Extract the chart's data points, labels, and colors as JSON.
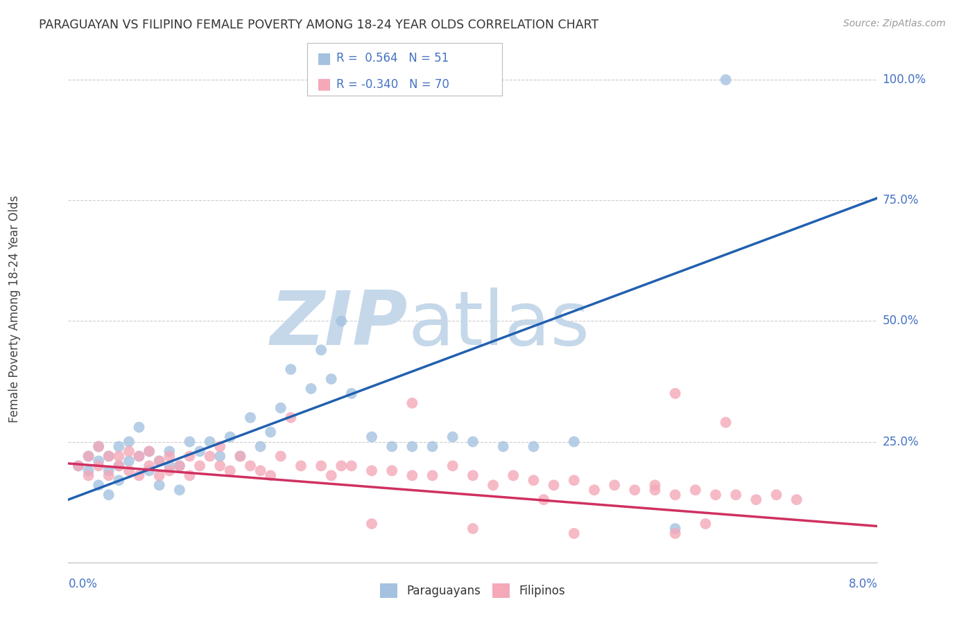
{
  "title": "PARAGUAYAN VS FILIPINO FEMALE POVERTY AMONG 18-24 YEAR OLDS CORRELATION CHART",
  "source": "Source: ZipAtlas.com",
  "ylabel": "Female Poverty Among 18-24 Year Olds",
  "xlim": [
    0.0,
    0.08
  ],
  "ylim": [
    0.0,
    1.05
  ],
  "paraguay_R": 0.564,
  "paraguay_N": 51,
  "filipino_R": -0.34,
  "filipino_N": 70,
  "blue_color": "#a4c2e0",
  "pink_color": "#f4a8b8",
  "blue_line_color": "#2060b0",
  "pink_line_color": "#d03060",
  "label_color": "#4472C4",
  "watermark_zip_color": "#c5d8ea",
  "watermark_atlas_color": "#c5d8ea",
  "background_color": "#ffffff",
  "blue_line_y0": 0.13,
  "blue_line_y1": 0.755,
  "pink_line_y0": 0.205,
  "pink_line_y1": 0.075,
  "para_x": [
    0.001,
    0.002,
    0.002,
    0.003,
    0.003,
    0.003,
    0.004,
    0.004,
    0.004,
    0.005,
    0.005,
    0.005,
    0.006,
    0.006,
    0.007,
    0.007,
    0.008,
    0.008,
    0.009,
    0.009,
    0.01,
    0.01,
    0.011,
    0.011,
    0.012,
    0.013,
    0.014,
    0.015,
    0.016,
    0.017,
    0.018,
    0.019,
    0.02,
    0.021,
    0.022,
    0.024,
    0.025,
    0.026,
    0.027,
    0.028,
    0.03,
    0.032,
    0.034,
    0.036,
    0.038,
    0.04,
    0.043,
    0.046,
    0.05,
    0.06,
    0.065
  ],
  "para_y": [
    0.2,
    0.22,
    0.19,
    0.24,
    0.21,
    0.16,
    0.22,
    0.19,
    0.14,
    0.24,
    0.2,
    0.17,
    0.25,
    0.21,
    0.28,
    0.22,
    0.23,
    0.19,
    0.21,
    0.16,
    0.23,
    0.2,
    0.2,
    0.15,
    0.25,
    0.23,
    0.25,
    0.22,
    0.26,
    0.22,
    0.3,
    0.24,
    0.27,
    0.32,
    0.4,
    0.36,
    0.44,
    0.38,
    0.5,
    0.35,
    0.26,
    0.24,
    0.24,
    0.24,
    0.26,
    0.25,
    0.24,
    0.24,
    0.25,
    0.07,
    1.0
  ],
  "fil_x": [
    0.001,
    0.002,
    0.002,
    0.003,
    0.003,
    0.004,
    0.004,
    0.005,
    0.005,
    0.006,
    0.006,
    0.007,
    0.007,
    0.008,
    0.008,
    0.009,
    0.009,
    0.01,
    0.01,
    0.011,
    0.012,
    0.012,
    0.013,
    0.014,
    0.015,
    0.015,
    0.016,
    0.017,
    0.018,
    0.019,
    0.02,
    0.021,
    0.022,
    0.023,
    0.025,
    0.026,
    0.027,
    0.028,
    0.03,
    0.032,
    0.034,
    0.036,
    0.038,
    0.04,
    0.042,
    0.044,
    0.046,
    0.048,
    0.05,
    0.052,
    0.054,
    0.056,
    0.058,
    0.06,
    0.062,
    0.064,
    0.066,
    0.068,
    0.07,
    0.072,
    0.034,
    0.06,
    0.065,
    0.047,
    0.058,
    0.063,
    0.03,
    0.04,
    0.05,
    0.06
  ],
  "fil_y": [
    0.2,
    0.22,
    0.18,
    0.24,
    0.2,
    0.22,
    0.18,
    0.22,
    0.2,
    0.23,
    0.19,
    0.22,
    0.18,
    0.2,
    0.23,
    0.21,
    0.18,
    0.22,
    0.19,
    0.2,
    0.22,
    0.18,
    0.2,
    0.22,
    0.2,
    0.24,
    0.19,
    0.22,
    0.2,
    0.19,
    0.18,
    0.22,
    0.3,
    0.2,
    0.2,
    0.18,
    0.2,
    0.2,
    0.19,
    0.19,
    0.18,
    0.18,
    0.2,
    0.18,
    0.16,
    0.18,
    0.17,
    0.16,
    0.17,
    0.15,
    0.16,
    0.15,
    0.16,
    0.14,
    0.15,
    0.14,
    0.14,
    0.13,
    0.14,
    0.13,
    0.33,
    0.35,
    0.29,
    0.13,
    0.15,
    0.08,
    0.08,
    0.07,
    0.06,
    0.06
  ]
}
